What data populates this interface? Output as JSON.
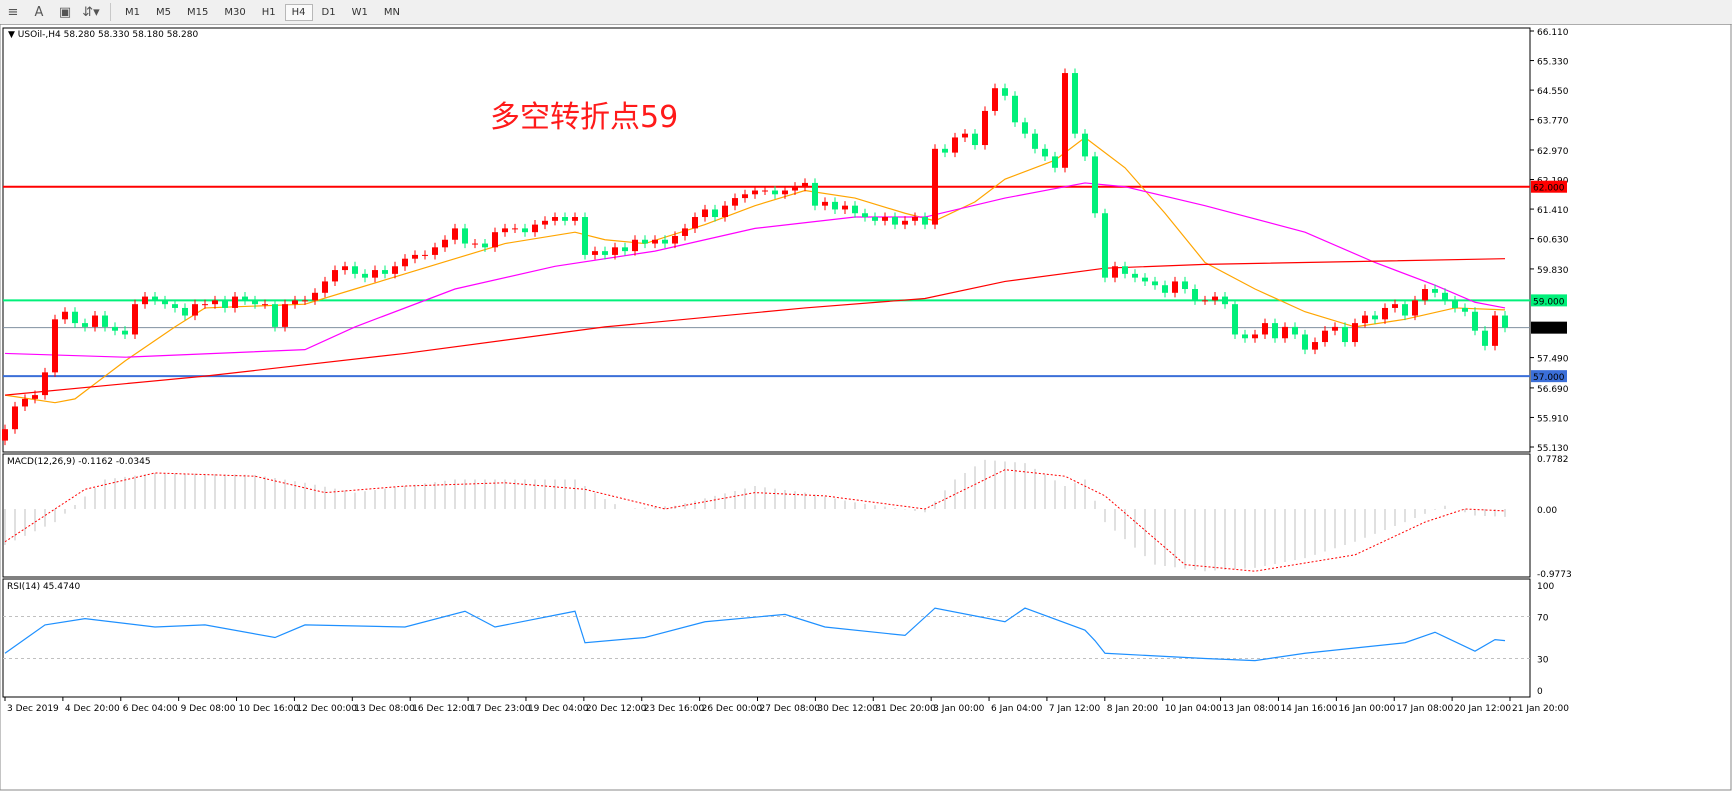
{
  "toolbar": {
    "icons": [
      "fibonacci-icon",
      "text-icon",
      "text-label-icon",
      "arrows-icon"
    ],
    "text_icon_label": "A",
    "timeframes": [
      "M1",
      "M5",
      "M15",
      "M30",
      "H1",
      "H4",
      "D1",
      "W1",
      "MN"
    ],
    "active_timeframe": "H4"
  },
  "header": {
    "info": "USOil-,H4  58.280 58.330 58.180 58.280"
  },
  "annotation": {
    "text": "多空转折点59",
    "color": "#ff1a1a"
  },
  "colors": {
    "up": "#ff0000",
    "down": "#00f07a",
    "ma_fast": "#ffa500",
    "ma_mid": "#ff00ff",
    "ma_slow": "#ff0000",
    "rsi": "#1e90ff",
    "macd_hist": "#c0c0c0",
    "macd_signal": "#ff0000"
  },
  "chart_data": [
    {
      "type": "candlestick",
      "symbol": "USOil-",
      "timeframe": "H4",
      "ylim": [
        55.13,
        66.11
      ],
      "y_ticks": [
        "66.110",
        "65.330",
        "64.550",
        "63.770",
        "62.970",
        "62.190",
        "61.410",
        "60.630",
        "59.830",
        "57.490",
        "56.690",
        "55.910",
        "55.130"
      ],
      "x_ticks": [
        "3 Dec 2019",
        "4 Dec 20:00",
        "6 Dec 04:00",
        "9 Dec 08:00",
        "10 Dec 16:00",
        "12 Dec 00:00",
        "13 Dec 08:00",
        "16 Dec 12:00",
        "17 Dec 23:00",
        "19 Dec 04:00",
        "20 Dec 12:00",
        "23 Dec 16:00",
        "26 Dec 00:00",
        "27 Dec 08:00",
        "30 Dec 12:00",
        "31 Dec 20:00",
        "3 Jan 00:00",
        "6 Jan 04:00",
        "7 Jan 12:00",
        "8 Jan 20:00",
        "10 Jan 04:00",
        "13 Jan 08:00",
        "14 Jan 16:00",
        "16 Jan 00:00",
        "17 Jan 08:00",
        "20 Jan 12:00",
        "21 Jan 20:00"
      ],
      "closes": [
        55.6,
        56.2,
        56.4,
        56.5,
        57.1,
        58.5,
        58.7,
        58.4,
        58.3,
        58.6,
        58.3,
        58.2,
        58.1,
        58.9,
        59.1,
        59.0,
        58.9,
        58.8,
        58.6,
        58.9,
        58.9,
        59.0,
        58.8,
        59.1,
        59.0,
        58.9,
        58.9,
        58.3,
        58.9,
        59.0,
        59.0,
        59.2,
        59.5,
        59.8,
        59.9,
        59.7,
        59.6,
        59.8,
        59.7,
        59.9,
        60.1,
        60.2,
        60.2,
        60.4,
        60.6,
        60.9,
        60.5,
        60.5,
        60.4,
        60.8,
        60.9,
        60.9,
        60.8,
        61.0,
        61.1,
        61.2,
        61.1,
        61.2,
        60.2,
        60.3,
        60.2,
        60.4,
        60.3,
        60.6,
        60.5,
        60.6,
        60.5,
        60.7,
        60.9,
        61.2,
        61.4,
        61.2,
        61.5,
        61.7,
        61.8,
        61.9,
        61.9,
        61.8,
        61.9,
        62.0,
        62.1,
        61.5,
        61.6,
        61.4,
        61.5,
        61.3,
        61.2,
        61.1,
        61.2,
        61.0,
        61.1,
        61.2,
        61.0,
        63.0,
        62.9,
        63.3,
        63.4,
        63.1,
        64.0,
        64.6,
        64.4,
        63.7,
        63.4,
        63.0,
        62.8,
        62.5,
        65.0,
        63.4,
        62.8,
        61.3,
        59.6,
        59.9,
        59.7,
        59.6,
        59.5,
        59.4,
        59.2,
        59.5,
        59.3,
        59.0,
        59.0,
        59.1,
        58.9,
        58.1,
        58.0,
        58.1,
        58.4,
        58.0,
        58.3,
        58.1,
        57.7,
        57.9,
        58.2,
        58.3,
        57.9,
        58.4,
        58.6,
        58.5,
        58.8,
        58.9,
        58.6,
        59.0,
        59.3,
        59.2,
        59.0,
        58.8,
        58.7,
        58.2,
        57.8,
        58.6,
        58.28
      ],
      "moving_averages": [
        {
          "color": "#ffa500",
          "points": [
            [
              0,
              56.5
            ],
            [
              5,
              56.3
            ],
            [
              7,
              56.4
            ],
            [
              12,
              57.4
            ],
            [
              17,
              58.3
            ],
            [
              20,
              58.8
            ],
            [
              30,
              58.9
            ],
            [
              35,
              59.3
            ],
            [
              45,
              60.1
            ],
            [
              50,
              60.5
            ],
            [
              57,
              60.8
            ],
            [
              60,
              60.6
            ],
            [
              64,
              60.5
            ],
            [
              70,
              61.0
            ],
            [
              75,
              61.5
            ],
            [
              80,
              61.9
            ],
            [
              85,
              61.7
            ],
            [
              90,
              61.3
            ],
            [
              93,
              61.1
            ],
            [
              97,
              61.6
            ],
            [
              100,
              62.2
            ],
            [
              105,
              62.7
            ],
            [
              108,
              63.3
            ],
            [
              112,
              62.5
            ],
            [
              116,
              61.3
            ],
            [
              120,
              60.0
            ],
            [
              125,
              59.3
            ],
            [
              130,
              58.7
            ],
            [
              135,
              58.3
            ],
            [
              140,
              58.5
            ],
            [
              145,
              58.8
            ],
            [
              150,
              58.75
            ]
          ]
        },
        {
          "color": "#ff00ff",
          "points": [
            [
              0,
              57.6
            ],
            [
              12,
              57.5
            ],
            [
              30,
              57.7
            ],
            [
              35,
              58.3
            ],
            [
              45,
              59.3
            ],
            [
              55,
              59.9
            ],
            [
              65,
              60.3
            ],
            [
              75,
              60.9
            ],
            [
              85,
              61.2
            ],
            [
              92,
              61.2
            ],
            [
              100,
              61.7
            ],
            [
              108,
              62.1
            ],
            [
              112,
              62.0
            ],
            [
              120,
              61.5
            ],
            [
              130,
              60.8
            ],
            [
              137,
              60.0
            ],
            [
              143,
              59.4
            ],
            [
              147,
              58.95
            ],
            [
              150,
              58.8
            ]
          ]
        },
        {
          "color": "#ff0000",
          "points": [
            [
              0,
              56.5
            ],
            [
              20,
              57.0
            ],
            [
              40,
              57.6
            ],
            [
              60,
              58.3
            ],
            [
              80,
              58.8
            ],
            [
              92,
              59.05
            ],
            [
              100,
              59.5
            ],
            [
              110,
              59.85
            ],
            [
              120,
              59.95
            ],
            [
              150,
              60.1
            ]
          ]
        }
      ],
      "horizontal_lines": [
        {
          "price": 62.0,
          "label": "62.000",
          "color": "#ff0000"
        },
        {
          "price": 59.0,
          "label": "59.000",
          "color": "#00f07a"
        },
        {
          "price": 57.0,
          "label": "57.000",
          "color": "#3b6fd8"
        }
      ],
      "current_price": {
        "price": 58.28,
        "label": "58.280"
      }
    },
    {
      "type": "macd",
      "label": "MACD(12,26,9) -0.1162 -0.0345",
      "ylim": [
        -0.9773,
        0.7782
      ],
      "y_ticks": [
        "0.7782",
        "0.00",
        "-0.9773"
      ],
      "histogram": [
        [
          0,
          -0.55
        ],
        [
          5,
          -0.2
        ],
        [
          10,
          0.45
        ],
        [
          15,
          0.55
        ],
        [
          25,
          0.52
        ],
        [
          30,
          0.4
        ],
        [
          35,
          0.25
        ],
        [
          45,
          0.45
        ],
        [
          50,
          0.45
        ],
        [
          57,
          0.45
        ],
        [
          60,
          0.15
        ],
        [
          62,
          0.0
        ],
        [
          67,
          0.05
        ],
        [
          75,
          0.35
        ],
        [
          80,
          0.25
        ],
        [
          85,
          0.1
        ],
        [
          92,
          -0.05
        ],
        [
          95,
          0.45
        ],
        [
          98,
          0.75
        ],
        [
          102,
          0.7
        ],
        [
          106,
          0.35
        ],
        [
          108,
          0.45
        ],
        [
          110,
          -0.2
        ],
        [
          115,
          -0.85
        ],
        [
          120,
          -0.95
        ],
        [
          125,
          -0.9
        ],
        [
          130,
          -0.75
        ],
        [
          135,
          -0.5
        ],
        [
          140,
          -0.2
        ],
        [
          144,
          0.05
        ],
        [
          147,
          -0.1
        ],
        [
          150,
          -0.12
        ]
      ],
      "signal": [
        [
          0,
          -0.5
        ],
        [
          8,
          0.3
        ],
        [
          15,
          0.55
        ],
        [
          25,
          0.5
        ],
        [
          32,
          0.25
        ],
        [
          40,
          0.35
        ],
        [
          50,
          0.4
        ],
        [
          58,
          0.3
        ],
        [
          66,
          0.0
        ],
        [
          75,
          0.25
        ],
        [
          82,
          0.2
        ],
        [
          92,
          0.0
        ],
        [
          100,
          0.6
        ],
        [
          106,
          0.5
        ],
        [
          110,
          0.2
        ],
        [
          118,
          -0.85
        ],
        [
          125,
          -0.95
        ],
        [
          135,
          -0.7
        ],
        [
          142,
          -0.2
        ],
        [
          146,
          0.0
        ],
        [
          150,
          -0.03
        ]
      ]
    },
    {
      "type": "rsi",
      "label": "RSI(14) 45.4740",
      "ylim": [
        0,
        100
      ],
      "y_ticks": [
        "100",
        "70",
        "30",
        "0"
      ],
      "levels": [
        70,
        30
      ],
      "values": [
        [
          0,
          35
        ],
        [
          4,
          62
        ],
        [
          8,
          68
        ],
        [
          15,
          60
        ],
        [
          20,
          62
        ],
        [
          27,
          50
        ],
        [
          30,
          62
        ],
        [
          40,
          60
        ],
        [
          46,
          75
        ],
        [
          49,
          60
        ],
        [
          57,
          75
        ],
        [
          58,
          45
        ],
        [
          64,
          50
        ],
        [
          70,
          65
        ],
        [
          78,
          72
        ],
        [
          82,
          60
        ],
        [
          90,
          52
        ],
        [
          93,
          78
        ],
        [
          100,
          65
        ],
        [
          102,
          78
        ],
        [
          108,
          57
        ],
        [
          109,
          47
        ],
        [
          110,
          35
        ],
        [
          120,
          30
        ],
        [
          125,
          28
        ],
        [
          130,
          35
        ],
        [
          135,
          40
        ],
        [
          140,
          45
        ],
        [
          143,
          55
        ],
        [
          147,
          37
        ],
        [
          149,
          48
        ],
        [
          150,
          47
        ]
      ]
    }
  ]
}
